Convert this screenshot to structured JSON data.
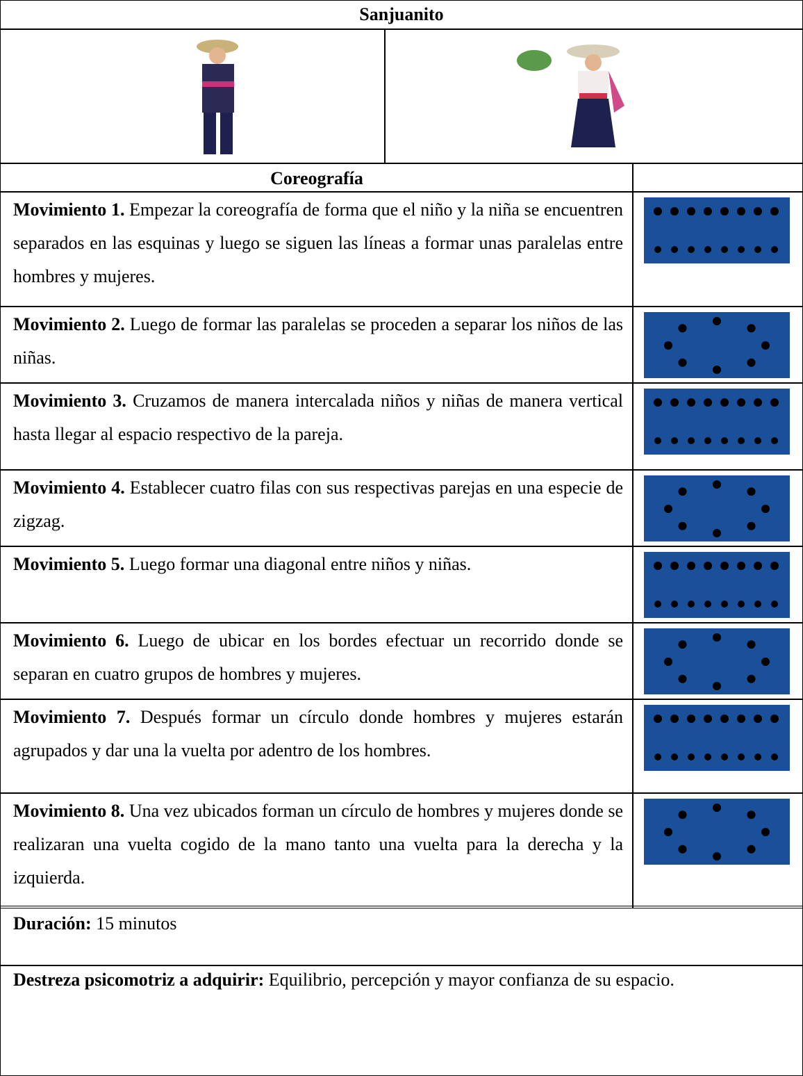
{
  "title": "Sanjuanito",
  "choreography": {
    "header": "Coreografía",
    "movements": [
      {
        "label": "Movimiento 1.",
        "text": "Empezar la coreografía de forma que el niño y la niña se encuentren separados en las esquinas y luego se siguen las líneas a formar unas paralelas entre hombres y mujeres."
      },
      {
        "label": "Movimiento 2.",
        "text": "Luego de formar las paralelas se proceden a separar los niños de las niñas."
      },
      {
        "label": "Movimiento 3.",
        "text": "Cruzamos de manera intercalada niños y niñas de manera vertical hasta llegar al espacio respectivo de la pareja."
      },
      {
        "label": "Movimiento 4.",
        "text": "Establecer cuatro filas con sus respectivas parejas en una especie de zigzag."
      },
      {
        "label": "Movimiento 5.",
        "text": "Luego formar una diagonal entre niños y niñas."
      },
      {
        "label": "Movimiento 6.",
        "text": "Luego de ubicar en los bordes efectuar un recorrido donde se separan en cuatro grupos de hombres y mujeres."
      },
      {
        "label": "Movimiento 7.",
        "text": "Después formar un círculo donde hombres y mujeres estarán agrupados y dar una la vuelta por adentro de los hombres."
      },
      {
        "label": "Movimiento 8.",
        "text": "Una vez ubicados forman un círculo de hombres y mujeres donde se realizaran una vuelta cogido de la mano tanto una vuelta para la derecha y la izquierda."
      }
    ]
  },
  "duration": {
    "label": "Duración:",
    "value": "15 minutos"
  },
  "skill": {
    "label": "Destreza  psicomotriz a adquirir:",
    "value": "Equilibrio, percepción y mayor confianza de su espacio."
  }
}
